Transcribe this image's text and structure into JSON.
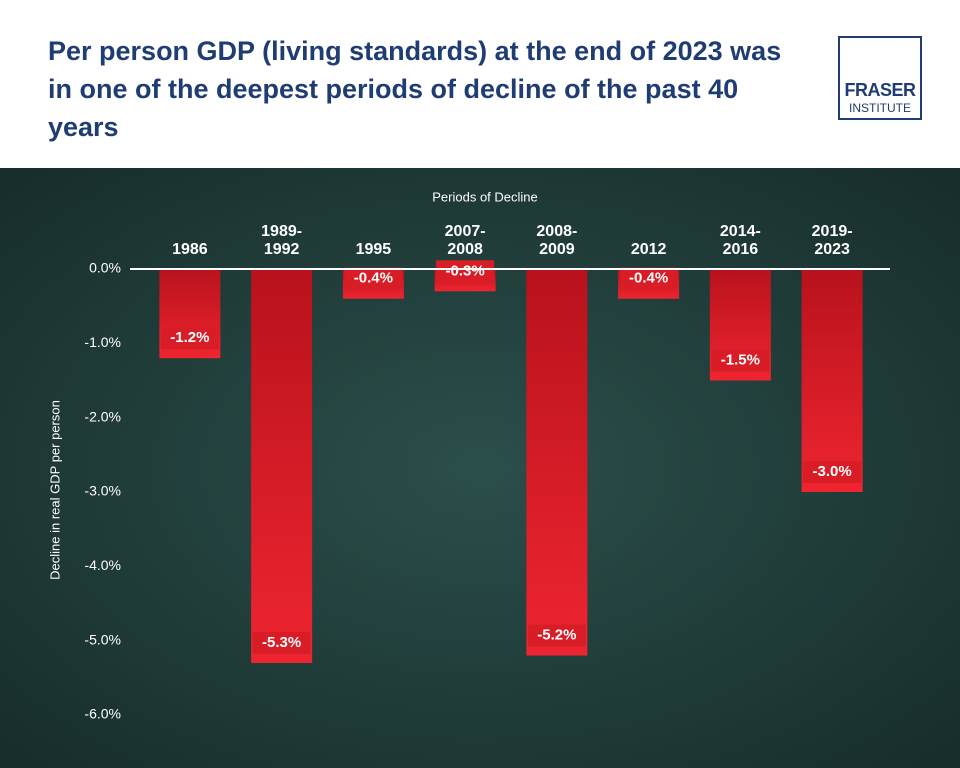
{
  "header": {
    "title": "Per person GDP (living standards) at the end of 2023 was in one of the deepest periods of decline of the past 40 years",
    "logo_top": "FRASER",
    "logo_bottom": "INSTITUTE"
  },
  "chart_data": {
    "type": "bar",
    "x_label": "Periods of Decline",
    "y_label": "Decline in real GDP per person",
    "categories": [
      "1986",
      "1989-1992",
      "1995",
      "2007-2008",
      "2008-2009",
      "2012",
      "2014-2016",
      "2019-2023"
    ],
    "values": [
      -1.2,
      -5.3,
      -0.4,
      -0.3,
      -5.2,
      -0.4,
      -1.5,
      -3.0
    ],
    "value_labels": [
      "-1.2%",
      "-5.3%",
      "-0.4%",
      "-0.3%",
      "-5.2%",
      "-0.4%",
      "-1.5%",
      "-3.0%"
    ],
    "color": "#d91d27",
    "ylim": [
      -6,
      0
    ],
    "yticks": [
      {
        "value": 0,
        "label": "0.0%"
      },
      {
        "value": -1,
        "label": "-1.0%"
      },
      {
        "value": -2,
        "label": "-2.0%"
      },
      {
        "value": -3,
        "label": "-3.0%"
      },
      {
        "value": -4,
        "label": "-4.0%"
      },
      {
        "value": -5,
        "label": "-5.0%"
      },
      {
        "value": -6,
        "label": "-6.0%"
      }
    ]
  }
}
